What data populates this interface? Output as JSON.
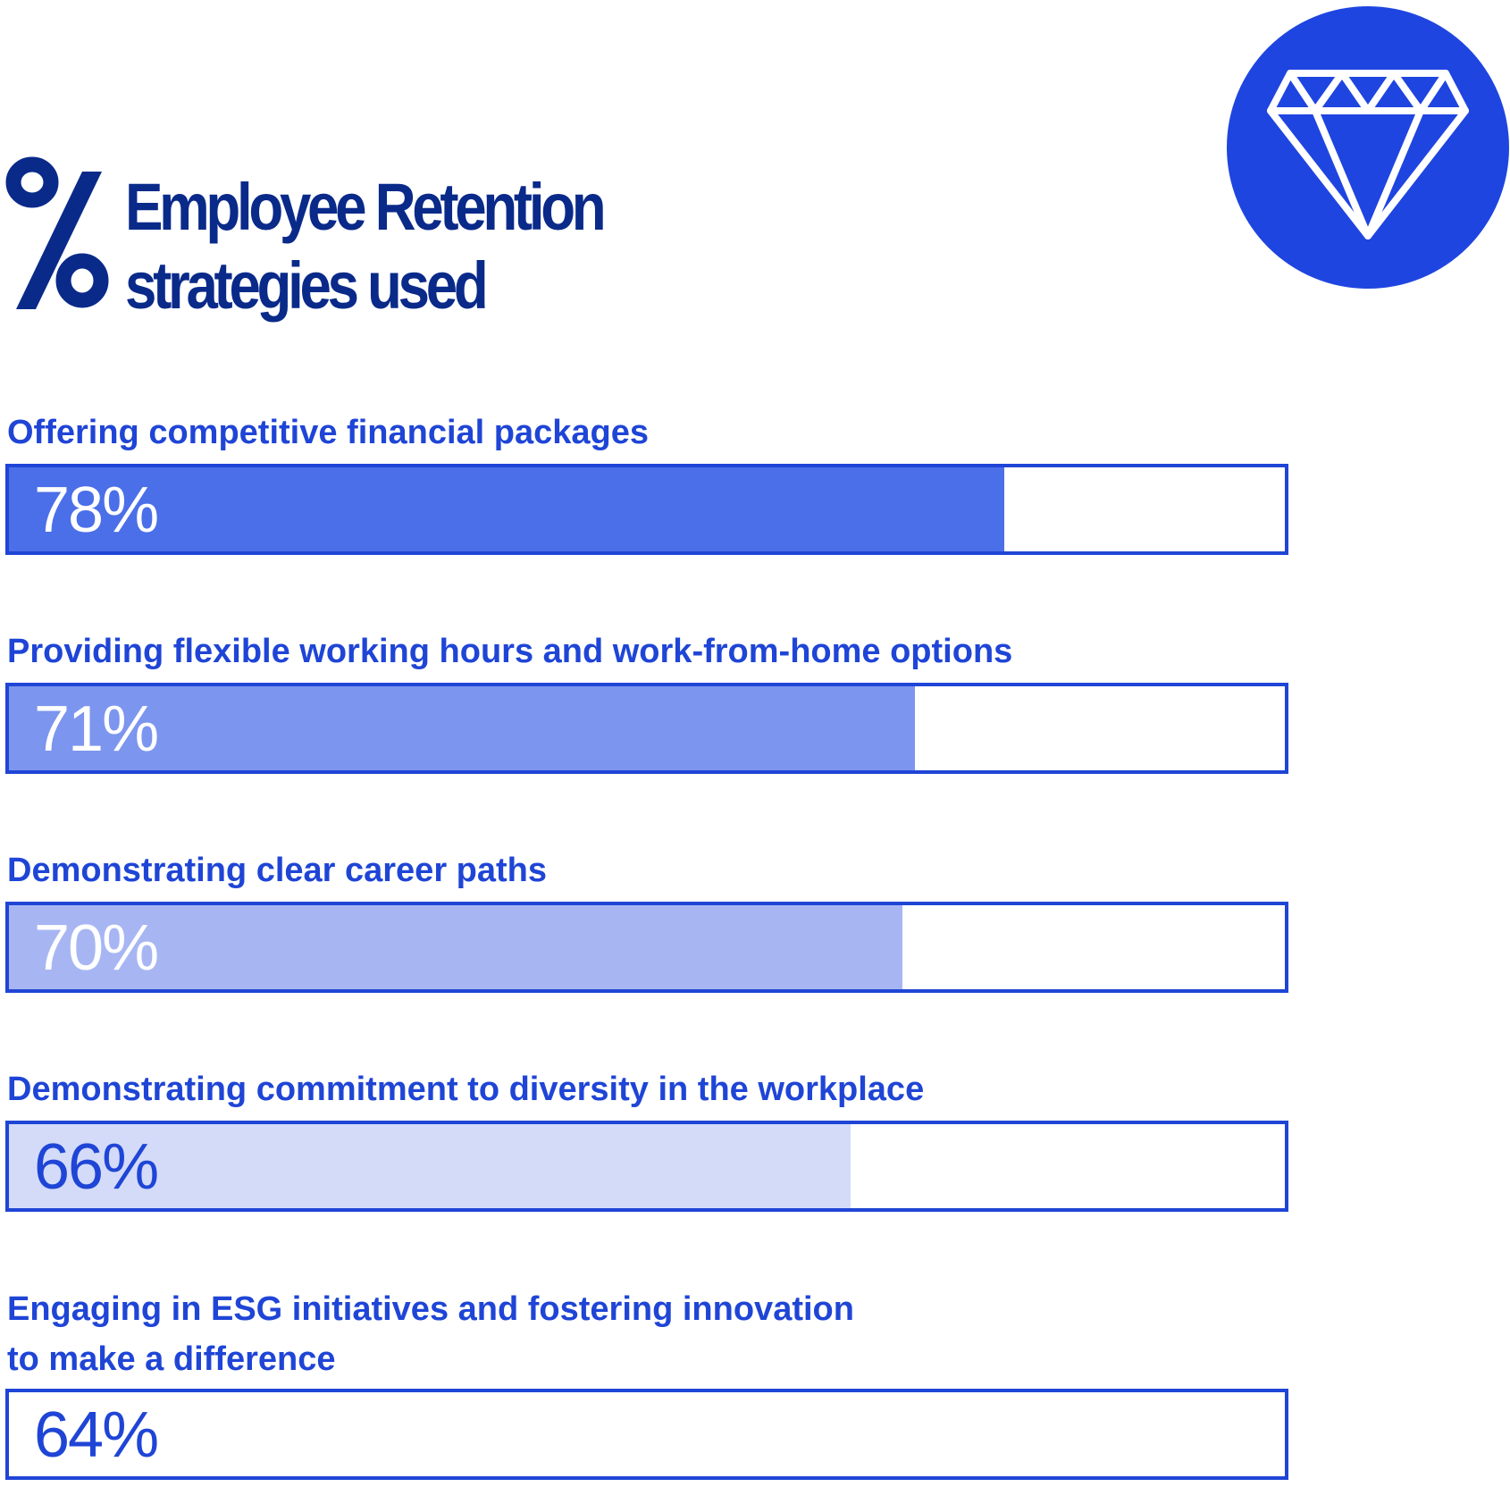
{
  "header": {
    "symbol": "%",
    "title_line1": "Employee Retention",
    "title_line2": "strategies used"
  },
  "badge": {
    "icon": "diamond-icon",
    "background": "#1f45e0",
    "stroke": "#ffffff"
  },
  "colors": {
    "label": "#1f45d6",
    "border": "#1f45d6",
    "fills": [
      "#4b6fe8",
      "#7c95ee",
      "#a7b6f3",
      "#d3dbf9",
      "#ffffff"
    ],
    "value_text_on_dark": "#ffffff",
    "value_text_on_light": "#1f45d6"
  },
  "chart_data": {
    "type": "bar",
    "orientation": "horizontal",
    "title": "Employee Retention strategies used",
    "unit": "%",
    "ylim": [
      0,
      100
    ],
    "categories": [
      "Offering competitive financial packages",
      "Providing flexible working hours and work-from-home options",
      "Demonstrating clear career paths",
      "Demonstrating commitment to diversity in the workplace",
      "Engaging in ESG initiatives and fostering innovation to make a difference"
    ],
    "category_lines": [
      [
        "Offering competitive financial packages"
      ],
      [
        "Providing flexible working hours and work-from-home options"
      ],
      [
        "Demonstrating clear career paths"
      ],
      [
        "Demonstrating commitment to diversity in the workplace"
      ],
      [
        "Engaging in ESG initiatives and fostering innovation",
        "to make a difference"
      ]
    ],
    "values": [
      78,
      71,
      70,
      66,
      64
    ],
    "value_labels": [
      "78%",
      "71%",
      "70%",
      "66%",
      "64%"
    ]
  }
}
